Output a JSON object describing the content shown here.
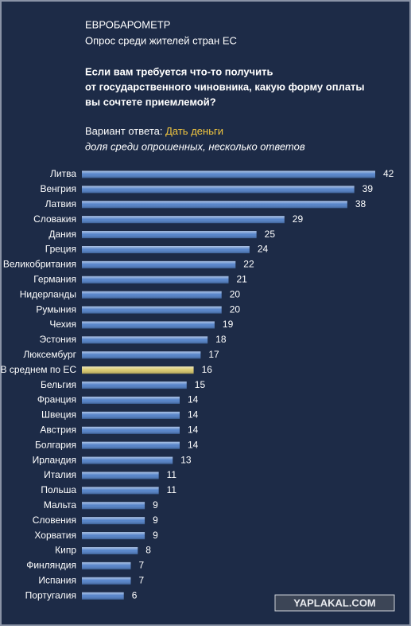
{
  "chart_data": {
    "type": "bar",
    "orientation": "horizontal",
    "title": "ЕВРОБАРОМЕТР",
    "subtitle": "Опрос среди жителей стран ЕС",
    "question": [
      "Если вам требуется  что-то получить",
      "от государственного чиновника, какую форму оплаты",
      "вы сочтете приемлемой?"
    ],
    "answer_label": "Вариант ответа:",
    "answer": "Дать деньги",
    "note": "доля среди опрошенных, несколько ответов",
    "categories": [
      "Литва",
      "Венгрия",
      "Латвия",
      "Словакия",
      "Дания",
      "Греция",
      "Великобритания",
      "Германия",
      "Нидерланды",
      "Румыния",
      "Чехия",
      "Эстония",
      "Люксембург",
      "В среднем  по ЕС",
      "Бельгия",
      "Франция",
      "Швеция",
      "Австрия",
      "Болгария",
      "Ирландия",
      "Италия",
      "Польша",
      "Мальта",
      "Словения",
      "Хорватия",
      "Кипр",
      "Финляндия",
      "Испания",
      "Португалия"
    ],
    "values": [
      42,
      39,
      38,
      29,
      25,
      24,
      22,
      21,
      20,
      20,
      19,
      18,
      17,
      16,
      15,
      14,
      14,
      14,
      14,
      13,
      11,
      11,
      9,
      9,
      9,
      8,
      7,
      7,
      6
    ],
    "bar_colors": [
      "#4f7fc8",
      "#4f7fc8",
      "#4f7fc8",
      "#4f7fc8",
      "#4f7fc8",
      "#4f7fc8",
      "#4f7fc8",
      "#4f7fc8",
      "#4f7fc8",
      "#4f7fc8",
      "#4f7fc8",
      "#4f7fc8",
      "#4f7fc8",
      "#d8c86a",
      "#4f7fc8",
      "#4f7fc8",
      "#4f7fc8",
      "#4f7fc8",
      "#4f7fc8",
      "#4f7fc8",
      "#4f7fc8",
      "#4f7fc8",
      "#4f7fc8",
      "#4f7fc8",
      "#4f7fc8",
      "#4f7fc8",
      "#4f7fc8",
      "#4f7fc8",
      "#4f7fc8"
    ],
    "watermark": "YAPLAKAL.COM"
  }
}
